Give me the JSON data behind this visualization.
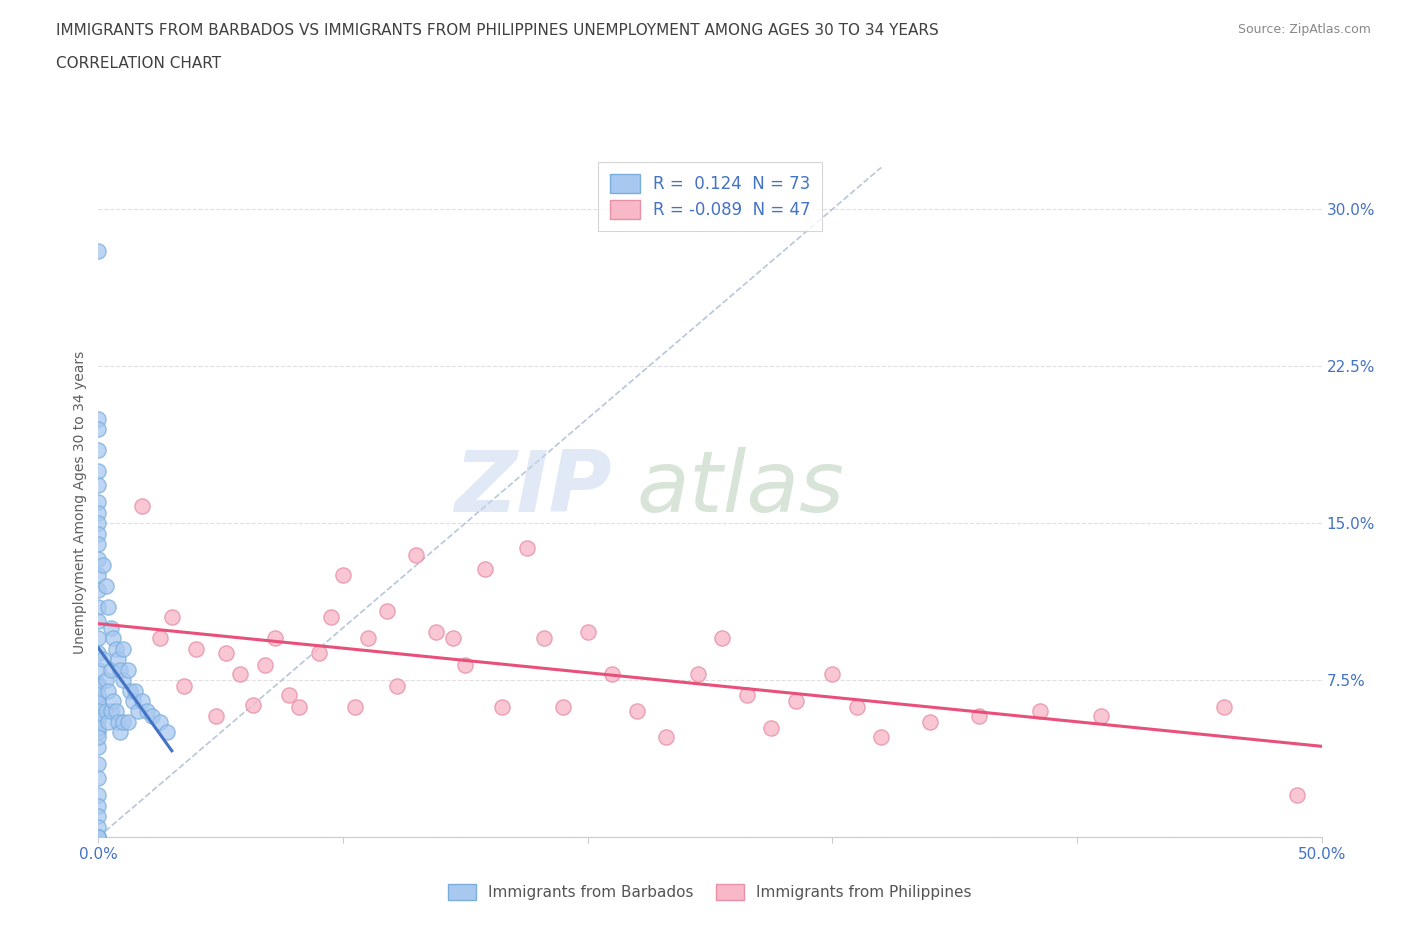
{
  "title_line1": "IMMIGRANTS FROM BARBADOS VS IMMIGRANTS FROM PHILIPPINES UNEMPLOYMENT AMONG AGES 30 TO 34 YEARS",
  "title_line2": "CORRELATION CHART",
  "source": "Source: ZipAtlas.com",
  "ylabel": "Unemployment Among Ages 30 to 34 years",
  "xlim": [
    0.0,
    0.5
  ],
  "ylim": [
    0.0,
    0.32
  ],
  "xticks": [
    0.0,
    0.1,
    0.2,
    0.3,
    0.4,
    0.5
  ],
  "xtick_labels": [
    "0.0%",
    "",
    "",
    "",
    "",
    "50.0%"
  ],
  "yticks_right": [
    0.0,
    0.075,
    0.15,
    0.225,
    0.3
  ],
  "R_barbados": 0.124,
  "N_barbados": 73,
  "R_philippines": -0.089,
  "N_philippines": 47,
  "color_barbados": "#a8c8f0",
  "color_barbados_edge": "#7aaedc",
  "color_barbados_line": "#4472c4",
  "color_philippines": "#f8b8c8",
  "color_philippines_edge": "#e890a8",
  "color_philippines_line": "#e8507a",
  "color_diagonal": "#b0c0d8",
  "color_axis_text": "#4472c4",
  "color_title": "#404040",
  "color_source": "#888888",
  "color_grid": "#e0e0e0",
  "color_ylabel": "#606060",
  "barbados_x": [
    0.0,
    0.0,
    0.0,
    0.0,
    0.0,
    0.0,
    0.0,
    0.0,
    0.0,
    0.0,
    0.0,
    0.0,
    0.0,
    0.0,
    0.0,
    0.0,
    0.0,
    0.0,
    0.0,
    0.0,
    0.0,
    0.0,
    0.0,
    0.0,
    0.0,
    0.0,
    0.0,
    0.0,
    0.0,
    0.0,
    0.0,
    0.0,
    0.0,
    0.0,
    0.0,
    0.0,
    0.0,
    0.0,
    0.0,
    0.0,
    0.002,
    0.002,
    0.003,
    0.003,
    0.003,
    0.004,
    0.004,
    0.004,
    0.005,
    0.005,
    0.005,
    0.006,
    0.006,
    0.007,
    0.007,
    0.008,
    0.008,
    0.009,
    0.009,
    0.01,
    0.01,
    0.01,
    0.012,
    0.012,
    0.013,
    0.014,
    0.015,
    0.016,
    0.018,
    0.02,
    0.022,
    0.025,
    0.028
  ],
  "barbados_y": [
    0.28,
    0.2,
    0.195,
    0.185,
    0.175,
    0.168,
    0.16,
    0.155,
    0.15,
    0.145,
    0.14,
    0.133,
    0.125,
    0.118,
    0.11,
    0.103,
    0.095,
    0.088,
    0.08,
    0.073,
    0.065,
    0.058,
    0.05,
    0.043,
    0.035,
    0.028,
    0.02,
    0.015,
    0.01,
    0.005,
    0.0,
    0.0,
    0.0,
    0.072,
    0.068,
    0.064,
    0.06,
    0.056,
    0.052,
    0.048,
    0.13,
    0.085,
    0.12,
    0.075,
    0.06,
    0.11,
    0.07,
    0.055,
    0.1,
    0.08,
    0.06,
    0.095,
    0.065,
    0.09,
    0.06,
    0.085,
    0.055,
    0.08,
    0.05,
    0.09,
    0.075,
    0.055,
    0.08,
    0.055,
    0.07,
    0.065,
    0.07,
    0.06,
    0.065,
    0.06,
    0.058,
    0.055,
    0.05
  ],
  "philippines_x": [
    0.018,
    0.025,
    0.03,
    0.035,
    0.04,
    0.048,
    0.052,
    0.058,
    0.063,
    0.068,
    0.072,
    0.078,
    0.082,
    0.09,
    0.095,
    0.1,
    0.105,
    0.11,
    0.118,
    0.122,
    0.13,
    0.138,
    0.145,
    0.15,
    0.158,
    0.165,
    0.175,
    0.182,
    0.19,
    0.2,
    0.21,
    0.22,
    0.232,
    0.245,
    0.255,
    0.265,
    0.275,
    0.285,
    0.3,
    0.31,
    0.32,
    0.34,
    0.36,
    0.385,
    0.41,
    0.46,
    0.49
  ],
  "philippines_y": [
    0.158,
    0.095,
    0.105,
    0.072,
    0.09,
    0.058,
    0.088,
    0.078,
    0.063,
    0.082,
    0.095,
    0.068,
    0.062,
    0.088,
    0.105,
    0.125,
    0.062,
    0.095,
    0.108,
    0.072,
    0.135,
    0.098,
    0.095,
    0.082,
    0.128,
    0.062,
    0.138,
    0.095,
    0.062,
    0.098,
    0.078,
    0.06,
    0.048,
    0.078,
    0.095,
    0.068,
    0.052,
    0.065,
    0.078,
    0.062,
    0.048,
    0.055,
    0.058,
    0.06,
    0.058,
    0.062,
    0.02
  ]
}
